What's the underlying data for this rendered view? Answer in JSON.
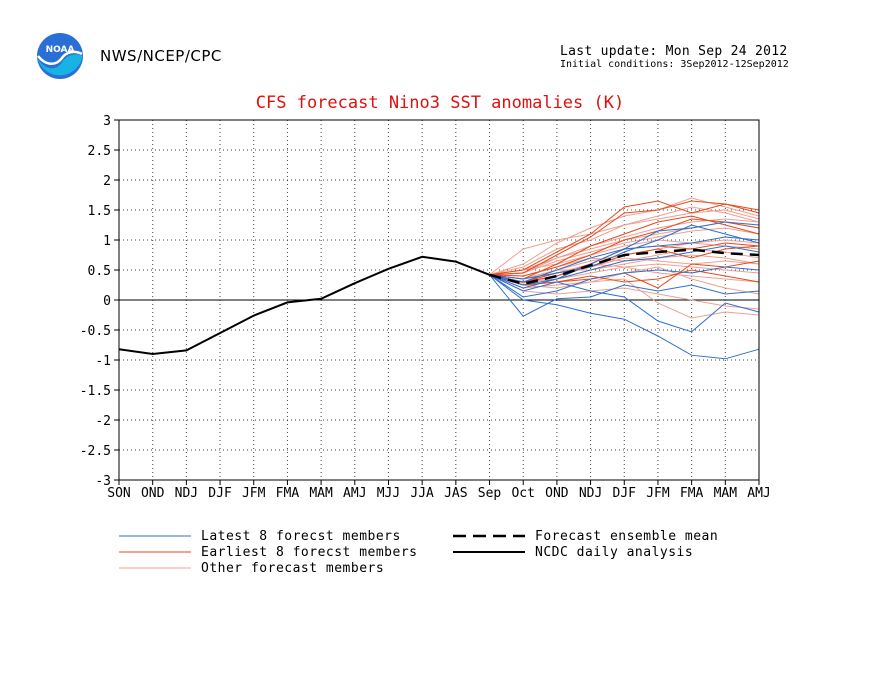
{
  "header": {
    "organization": "NWS/NCEP/CPC",
    "last_update": "Last update: Mon Sep 24 2012",
    "initial_conditions": "Initial conditions: 3Sep2012-12Sep2012"
  },
  "logo": {
    "text": "NOAA",
    "icon": "noaa-logo"
  },
  "colors": {
    "title": "#e01010",
    "latest": "#2e6fd0",
    "earliest": "#e84a1e",
    "other": "#f0a090",
    "analysis": "#000000",
    "mean": "#000000"
  },
  "chart_data": {
    "type": "line",
    "title": "CFS forecast Nino3 SST anomalies (K)",
    "xlabel": "",
    "ylabel": "",
    "categories": [
      "SON",
      "OND",
      "NDJ",
      "DJF",
      "JFM",
      "FMA",
      "MAM",
      "AMJ",
      "MJJ",
      "JJA",
      "JAS",
      "Sep",
      "Oct",
      "OND",
      "NDJ",
      "DJF",
      "JFM",
      "FMA",
      "MAM",
      "AMJ"
    ],
    "ylim": [
      -3,
      3
    ],
    "yticks": [
      3,
      2.5,
      2,
      1.5,
      1,
      0.5,
      0,
      -0.5,
      -1,
      -1.5,
      -2,
      -2.5,
      -3
    ],
    "grid": true,
    "zero_line": true,
    "legend": {
      "placement": "bottom",
      "entries": [
        {
          "label": "Latest 8 forecst members",
          "key": "latest"
        },
        {
          "label": "Earliest 8 forecst members",
          "key": "earliest"
        },
        {
          "label": "Other forecast members",
          "key": "other"
        },
        {
          "label": "Forecast ensemble mean",
          "key": "mean"
        },
        {
          "label": "NCDC daily analysis",
          "key": "analysis"
        }
      ]
    },
    "analysis": {
      "name": "NCDC daily analysis",
      "start_index": 0,
      "values": [
        -0.82,
        -0.9,
        -0.84,
        -0.55,
        -0.26,
        -0.04,
        0.02,
        0.28,
        0.52,
        0.72,
        0.64,
        0.42
      ]
    },
    "ensemble_mean": {
      "name": "Forecast ensemble mean",
      "start_index": 11,
      "values": [
        0.42,
        0.27,
        0.4,
        0.58,
        0.75,
        0.8,
        0.84,
        0.78,
        0.75
      ]
    },
    "members": {
      "start_index": 11,
      "latest": [
        [
          0.42,
          -0.27,
          0.02,
          0.05,
          0.25,
          0.15,
          0.25,
          0.1,
          0.15
        ],
        [
          0.42,
          0.0,
          -0.08,
          -0.22,
          -0.32,
          -0.6,
          -0.92,
          -0.98,
          -0.82
        ],
        [
          0.42,
          0.15,
          0.3,
          0.15,
          0.05,
          -0.35,
          -0.53,
          -0.05,
          -0.2
        ],
        [
          0.42,
          0.35,
          0.45,
          0.55,
          0.8,
          1.0,
          1.25,
          1.1,
          0.95
        ],
        [
          0.42,
          0.2,
          0.35,
          0.6,
          0.85,
          1.15,
          1.2,
          1.3,
          1.25
        ],
        [
          0.42,
          0.3,
          0.5,
          0.7,
          0.85,
          0.9,
          0.95,
          1.05,
          1.0
        ],
        [
          0.42,
          0.05,
          0.15,
          0.35,
          0.45,
          0.5,
          0.45,
          0.55,
          0.5
        ],
        [
          0.42,
          0.25,
          0.35,
          0.5,
          0.65,
          0.7,
          0.8,
          0.9,
          0.8
        ]
      ],
      "earliest": [
        [
          0.42,
          0.5,
          0.8,
          1.1,
          1.55,
          1.65,
          1.45,
          1.6,
          1.5
        ],
        [
          0.42,
          0.45,
          0.75,
          1.05,
          1.45,
          1.5,
          1.65,
          1.6,
          1.45
        ],
        [
          0.42,
          0.35,
          0.6,
          0.9,
          1.1,
          1.3,
          1.4,
          1.25,
          1.1
        ],
        [
          0.42,
          0.3,
          0.4,
          0.6,
          0.85,
          0.9,
          0.85,
          0.95,
          0.9
        ],
        [
          0.42,
          0.25,
          0.3,
          0.4,
          0.3,
          0.35,
          0.5,
          0.4,
          0.3
        ],
        [
          0.42,
          0.3,
          0.45,
          0.55,
          0.75,
          0.85,
          0.7,
          0.85,
          0.9
        ],
        [
          0.42,
          0.4,
          0.55,
          0.75,
          1.0,
          1.15,
          1.35,
          1.3,
          1.2
        ],
        [
          0.42,
          0.25,
          0.3,
          0.35,
          0.45,
          0.2,
          0.6,
          0.55,
          0.65
        ]
      ],
      "other": [
        [
          0.42,
          0.6,
          0.95,
          1.2,
          1.4,
          1.5,
          1.7,
          1.55,
          1.4
        ],
        [
          0.42,
          0.55,
          0.85,
          1.0,
          1.25,
          1.35,
          1.45,
          1.5,
          1.35
        ],
        [
          0.42,
          0.5,
          0.7,
          0.85,
          1.0,
          1.1,
          1.2,
          1.3,
          1.2
        ],
        [
          0.42,
          0.35,
          0.5,
          0.65,
          0.75,
          0.85,
          0.95,
          1.0,
          0.95
        ],
        [
          0.42,
          0.3,
          0.35,
          0.45,
          0.55,
          0.6,
          0.55,
          0.5,
          0.45
        ],
        [
          0.42,
          0.2,
          0.25,
          0.3,
          0.35,
          -0.05,
          -0.3,
          -0.2,
          -0.25
        ],
        [
          0.42,
          0.15,
          0.1,
          0.15,
          0.2,
          0.1,
          0.0,
          -0.1,
          -0.15
        ],
        [
          0.42,
          0.45,
          0.65,
          0.8,
          0.95,
          1.05,
          1.15,
          1.2,
          1.1
        ],
        [
          0.42,
          0.4,
          0.55,
          0.7,
          0.65,
          0.75,
          0.85,
          0.8,
          0.7
        ],
        [
          0.42,
          0.28,
          0.4,
          0.55,
          0.7,
          0.65,
          0.6,
          0.65,
          0.6
        ],
        [
          0.42,
          0.5,
          0.6,
          0.75,
          0.9,
          1.0,
          0.95,
          0.9,
          0.85
        ],
        [
          0.42,
          0.85,
          1.0,
          1.1,
          1.25,
          1.4,
          1.55,
          1.45,
          1.3
        ],
        [
          0.42,
          0.3,
          0.45,
          0.6,
          0.55,
          0.45,
          0.4,
          0.35,
          0.3
        ],
        [
          0.42,
          0.35,
          0.5,
          0.5,
          0.6,
          0.7,
          0.75,
          0.7,
          0.6
        ],
        [
          0.42,
          0.45,
          0.7,
          0.9,
          1.05,
          1.2,
          1.3,
          1.35,
          1.3
        ],
        [
          0.42,
          0.25,
          0.2,
          0.3,
          0.45,
          0.55,
          0.35,
          0.2,
          0.1
        ]
      ]
    }
  }
}
